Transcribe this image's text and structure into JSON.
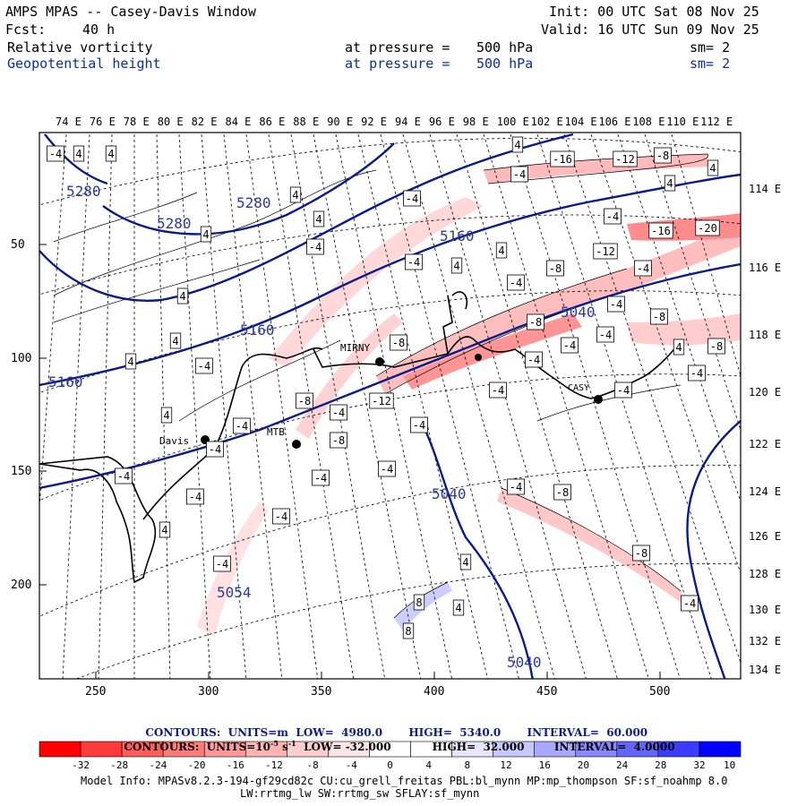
{
  "header": {
    "title": "AMPS MPAS -- Casey-Davis Window",
    "fcst_label": "Fcst:",
    "fcst_value": "40 h",
    "init": "Init: 00 UTC Sat 08 Nov 25",
    "valid": "Valid: 16 UTC Sun 09 Nov 25",
    "field1": {
      "name": "Relative vorticity",
      "at": "at pressure =",
      "level": "500 hPa",
      "sm": "sm= 2"
    },
    "field2": {
      "name": "Geopotential height",
      "at": "at pressure =",
      "level": "500 hPa",
      "sm": "sm= 2"
    }
  },
  "map": {
    "top_lon_labels": [
      "74 E",
      "76 E",
      "78 E",
      "80 E",
      "82 E",
      "84 E",
      "86 E",
      "88 E",
      "90 E",
      "92 E",
      "94 E",
      "96 E",
      "98 E",
      "100 E",
      "102 E",
      "104 E",
      "106 E",
      "108 E",
      "110 E",
      "112 E"
    ],
    "right_lon_labels": [
      "114 E",
      "116 E",
      "118 E",
      "120 E",
      "122 E",
      "124 E",
      "126 E",
      "128 E",
      "130 E",
      "132 E",
      "134 E"
    ],
    "left_y_ticks": [
      "50",
      "100",
      "150",
      "200"
    ],
    "bottom_x_ticks": [
      "250",
      "300",
      "350",
      "400",
      "450",
      "500"
    ],
    "stations": {
      "mirny": "MIRNY",
      "davis": "Davis",
      "mtb": "MTB",
      "casey": "CASY"
    },
    "height_labels": [
      "5280",
      "5280",
      "5280",
      "5160",
      "5160",
      "5160",
      "5040",
      "5040",
      "5040",
      "5054"
    ],
    "vort_labels_neg": [
      "-4",
      "-8",
      "-12",
      "-16",
      "-20"
    ],
    "vort_labels_pos": [
      "4",
      "8"
    ]
  },
  "contour_info": {
    "line1": {
      "prefix": "CONTOURS:",
      "units": "UNITS=m",
      "low": "LOW=",
      "low_v": "4980.0",
      "high": "HIGH=",
      "high_v": "5340.0",
      "interval": "INTERVAL=",
      "interval_v": "60.000"
    },
    "line2": {
      "prefix": "CONTOURS:",
      "units": "UNITS=10",
      "low": "LOW=",
      "low_v": "-32.000",
      "high": "HIGH=",
      "high_v": "32.000",
      "interval": "INTERVAL=",
      "interval_v": "4.0000"
    }
  },
  "colorbar": {
    "labels": [
      "-32",
      "-28",
      "-24",
      "-20",
      "-16",
      "-12",
      "-8",
      "-4",
      "0",
      "4",
      "8",
      "12",
      "16",
      "20",
      "24",
      "28",
      "32"
    ],
    "unit": "10",
    "colors": [
      "#ff0000",
      "#ff3a3a",
      "#ff5c5c",
      "#ff7a7a",
      "#ff9898",
      "#ffb4b4",
      "#ffcdcd",
      "#ffe6e6",
      "#ffffff",
      "#ffffff",
      "#e6e6ff",
      "#c8c8ff",
      "#a8a8ff",
      "#8888ff",
      "#6464ff",
      "#3c3cff",
      "#0000ff"
    ]
  },
  "model_info": {
    "line1": "Model Info: MPASv8.2.3-194-gf29cd82c CU:cu_grell_freitas PBL:bl_mynn MP:mp_thompson SF:sf_noahmp 8.0",
    "line2": "LW:rrtmg_lw SW:rrtmg_sw SFLAY:sf_mynn"
  }
}
